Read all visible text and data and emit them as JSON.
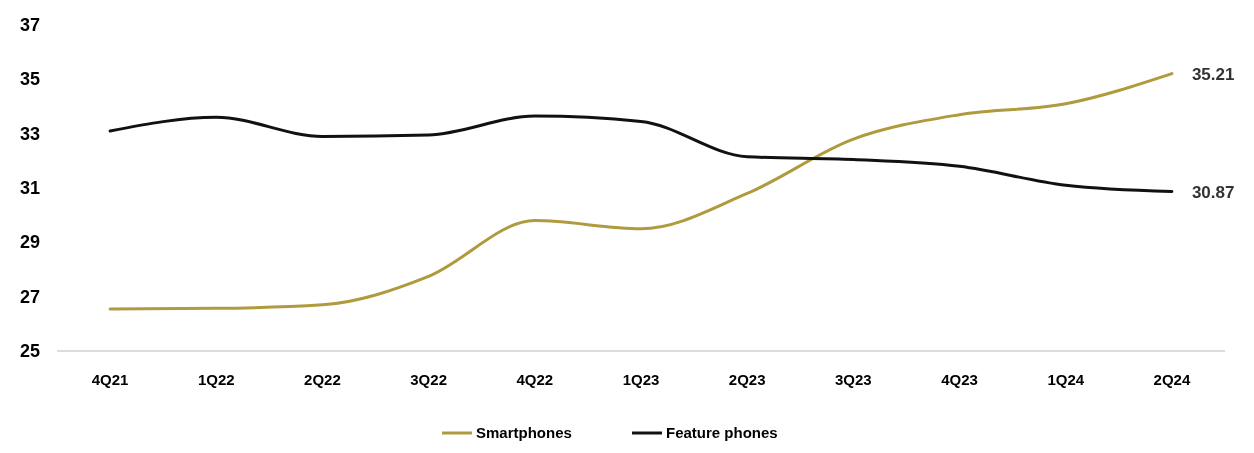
{
  "chart_data": {
    "type": "line",
    "categories": [
      "4Q21",
      "1Q22",
      "2Q22",
      "3Q22",
      "4Q22",
      "1Q23",
      "2Q23",
      "3Q23",
      "4Q23",
      "1Q24",
      "2Q24"
    ],
    "series": [
      {
        "name": "Smartphones",
        "color": "#b09a3e",
        "values": [
          26.55,
          26.57,
          26.7,
          27.75,
          29.8,
          29.5,
          30.8,
          32.8,
          33.7,
          34.1,
          35.21
        ],
        "value_labels": [
          null,
          null,
          null,
          null,
          null,
          null,
          null,
          null,
          null,
          null,
          "35.21"
        ]
      },
      {
        "name": "Feature phones",
        "color": "#111111",
        "values": [
          33.1,
          33.6,
          32.9,
          32.95,
          33.65,
          33.45,
          32.15,
          32.05,
          31.8,
          31.1,
          30.87
        ],
        "value_labels": [
          null,
          null,
          null,
          null,
          null,
          null,
          null,
          null,
          null,
          null,
          "30.87"
        ]
      }
    ],
    "ylim": [
      25,
      37
    ],
    "yticks": [
      25,
      27,
      29,
      31,
      33,
      35,
      37
    ],
    "legend": "bottom",
    "grid": false
  }
}
